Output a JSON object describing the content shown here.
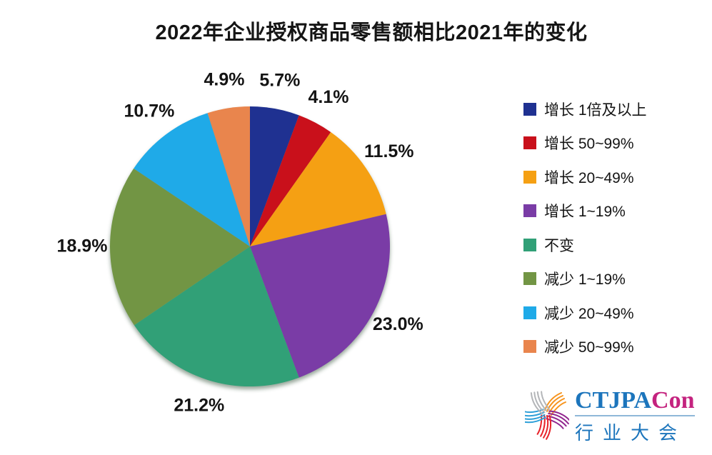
{
  "title": "2022年企业授权商品零售额相比2021年的变化",
  "chart_data": {
    "type": "pie",
    "title": "2022年企业授权商品零售额相比2021年的变化",
    "start_angle_deg": 0,
    "direction": "clockwise",
    "legend_position": "right",
    "slices": [
      {
        "label": "增长 1倍及以上",
        "value": 5.7,
        "display": "5.7%",
        "color": "#1F3191"
      },
      {
        "label": "增长 50~99%",
        "value": 4.1,
        "display": "4.1%",
        "color": "#C9101B"
      },
      {
        "label": "增长 20~49%",
        "value": 11.5,
        "display": "11.5%",
        "color": "#F5A013"
      },
      {
        "label": "增长 1~19%",
        "value": 23.0,
        "display": "23.0%",
        "color": "#7A3CA6"
      },
      {
        "label": "不变",
        "value": 21.2,
        "display": "21.2%",
        "color": "#31A077"
      },
      {
        "label": "减少 1~19%",
        "value": 18.9,
        "display": "18.9%",
        "color": "#729544"
      },
      {
        "label": "减少 20~49%",
        "value": 10.7,
        "display": "10.7%",
        "color": "#1FAAE8"
      },
      {
        "label": "减少 50~99%",
        "value": 4.9,
        "display": "4.9%",
        "color": "#E9854D"
      }
    ]
  },
  "logo": {
    "wordmark_primary": "CTJPA",
    "wordmark_accent": "Con",
    "subtitle": "行业大会",
    "primary_color": "#1C75BC",
    "accent_color": "#C4237F",
    "rule_color": "#8FB8D8",
    "pinwheel_colors": [
      "#F7941D",
      "#92278F",
      "#E8232A",
      "#2D9FD8",
      "#B3B5B8"
    ]
  }
}
